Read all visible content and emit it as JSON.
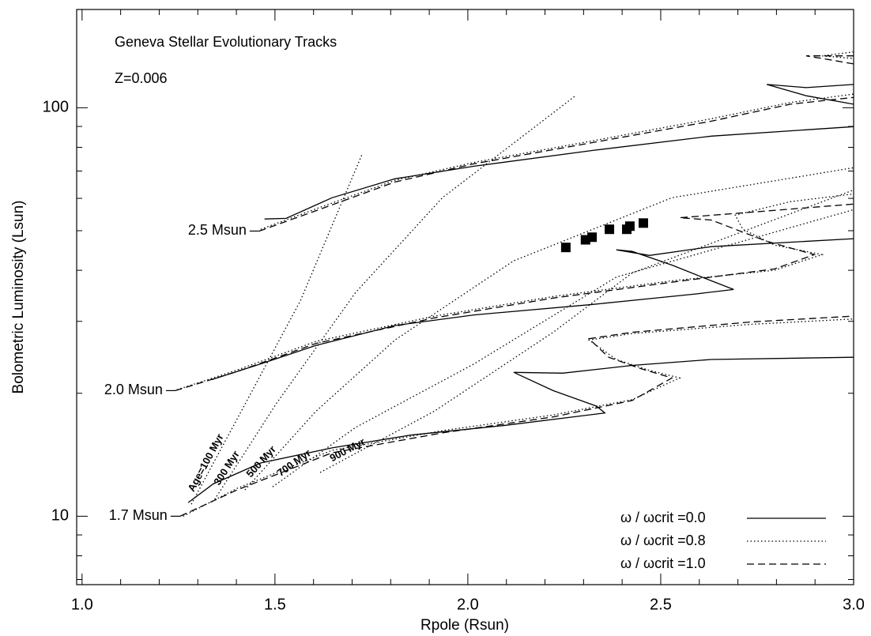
{
  "chart_data": {
    "type": "line",
    "annotations": [
      "Geneva Stellar Evolutionary Tracks",
      "Z=0.006"
    ],
    "x_label": "Rpole (Rsun)",
    "y_label": "Bolometric Luminosity (Lsun)",
    "xlim": [
      0.986,
      3.0
    ],
    "ylim": [
      6.8,
      174
    ],
    "log_y": true,
    "xticks": [
      {
        "value": 1.0,
        "label": "1.0"
      },
      {
        "value": 1.5,
        "label": "1.5"
      },
      {
        "value": 2.0,
        "label": "2.0"
      },
      {
        "value": 2.5,
        "label": "2.5"
      },
      {
        "value": 3.0,
        "label": "3.0"
      }
    ],
    "xminorticks": [
      1.1,
      1.2,
      1.3,
      1.4,
      1.6,
      1.7,
      1.8,
      1.9,
      2.1,
      2.2,
      2.3,
      2.4,
      2.6,
      2.7,
      2.8,
      2.9
    ],
    "yticks": [
      10,
      100
    ],
    "yminorticks": [
      7,
      8,
      9,
      20,
      30,
      40,
      50,
      60,
      70,
      80,
      90
    ],
    "legend": "bottom right",
    "color": "#000000",
    "mass_labels": [
      "1.7 Msun",
      "2.0 Msun",
      "2.5 Msun"
    ],
    "series": [
      {
        "name": "ω / ωcrit =0.0",
        "dash": "solid",
        "tracks": [
          {
            "x": [
              1.275,
              1.34,
              1.463,
              1.648,
              1.852,
              2.098,
              2.355,
              2.334,
              2.221,
              2.119,
              2.246,
              2.426,
              2.631,
              3.0
            ],
            "y": [
              10.8,
              12.0,
              13.5,
              14.7,
              15.8,
              16.7,
              17.9,
              18.6,
              20.3,
              22.5,
              22.4,
              23.4,
              24.2,
              24.5
            ]
          },
          {
            "x": [
              1.336,
              1.463,
              1.607,
              1.811,
              2.016,
              2.324,
              2.59,
              2.689,
              2.631,
              2.529,
              2.426,
              2.385,
              2.471,
              2.631,
              3.0
            ],
            "y": [
              21.6,
              23.6,
              26.2,
              29.3,
              31.1,
              33.0,
              35.0,
              35.9,
              37.7,
              41.2,
              44.5,
              44.9,
              43.5,
              45.7,
              47.8
            ]
          },
          {
            "x": [
              1.473,
              1.529,
              1.648,
              1.811,
              2.016,
              2.324,
              2.631,
              3.0,
              null,
              3.0,
              2.877,
              2.775,
              2.877,
              3.0
            ],
            "y": [
              53.4,
              53.6,
              60.2,
              67.0,
              71.9,
              78.6,
              85.2,
              89.9,
              null,
              102,
              107,
              114,
              112,
              114
            ]
          }
        ]
      },
      {
        "name": "ω / ωcrit =0.8",
        "dash": "dotted",
        "tracks": [
          {
            "x": [
              1.262,
              1.402,
              1.648,
              1.934,
              2.221,
              2.426,
              2.549,
              2.467,
              2.385,
              2.314,
              2.426,
              2.734,
              3.0
            ],
            "y": [
              10.0,
              11.7,
              14.5,
              16.2,
              17.7,
              19.3,
              21.8,
              22.8,
              24.2,
              27.0,
              28.0,
              29.5,
              30.4
            ]
          },
          {
            "x": [
              1.246,
              1.402,
              1.607,
              1.914,
              2.221,
              2.529,
              2.795,
              2.918,
              2.795,
              2.713,
              2.693,
              2.836,
              3.0
            ],
            "y": [
              20.4,
              22.8,
              26.8,
              30.9,
              34.5,
              37.7,
              40.0,
              43.7,
              46.1,
              50.4,
              54.6,
              58.9,
              61.5
            ]
          },
          {
            "x": [
              1.463,
              1.607,
              1.811,
              2.016,
              2.324,
              2.631,
              2.836,
              3.0,
              null,
              3.0,
              2.918,
              3.0
            ],
            "y": [
              50.4,
              56.6,
              66.4,
              73.5,
              83.0,
              94.0,
              103,
              108,
              null,
              137,
              134,
              132
            ]
          }
        ]
      },
      {
        "name": "ω / ωcrit =1.0",
        "dash": "dashed",
        "tracks": [
          {
            "x": [
              1.254,
              1.402,
              1.648,
              1.934,
              2.221,
              2.426,
              2.529,
              2.447,
              2.365,
              2.314,
              2.426,
              2.734,
              3.0
            ],
            "y": [
              10.0,
              11.6,
              14.3,
              16.0,
              17.5,
              19.2,
              21.8,
              23.0,
              24.5,
              27.2,
              28.2,
              29.9,
              30.9
            ]
          },
          {
            "x": [
              1.242,
              1.402,
              1.607,
              1.914,
              2.221,
              2.529,
              2.795,
              2.898,
              2.775,
              2.631,
              2.549,
              2.734,
              3.0
            ],
            "y": [
              20.3,
              22.6,
              26.5,
              30.6,
              34.2,
              37.4,
              40.3,
              43.7,
              47.1,
              53.1,
              53.8,
              55.5,
              58.1
            ]
          },
          {
            "x": [
              1.459,
              1.607,
              1.811,
              2.016,
              2.324,
              2.631,
              2.836,
              3.0,
              null,
              3.0,
              2.939,
              2.877,
              3.0
            ],
            "y": [
              49.9,
              56.0,
              65.8,
              72.9,
              82.2,
              92.7,
              102,
              106,
              null,
              128,
              131,
              134,
              134
            ]
          }
        ]
      }
    ],
    "isochrones": [
      {
        "label": "Age=100 Myr",
        "x": [
          1.283,
          1.402,
          1.566,
          1.725
        ],
        "y": [
          10.7,
          17.3,
          33.7,
          76.6
        ]
      },
      {
        "label": "300 Myr",
        "x": [
          1.344,
          1.504,
          1.709,
          1.934,
          2.279
        ],
        "y": [
          11.0,
          18.9,
          35.3,
          60.2,
          107
        ]
      },
      {
        "label": "500 Myr",
        "x": [
          1.422,
          1.607,
          1.811,
          2.119,
          2.529,
          3.0
        ],
        "y": [
          11.6,
          18.1,
          27.0,
          42.2,
          60.2,
          71.3
        ]
      },
      {
        "label": "700 Myr",
        "x": [
          1.494,
          1.709,
          2.016,
          2.385,
          3.0
        ],
        "y": [
          11.8,
          16.5,
          23.6,
          38.5,
          56.3
        ]
      },
      {
        "label": "900 Myr",
        "x": [
          1.617,
          1.914,
          2.221,
          2.426,
          3.0
        ],
        "y": [
          12.8,
          18.1,
          28.2,
          39.4,
          62.9
        ]
      }
    ],
    "points": {
      "x": [
        2.254,
        2.305,
        2.322,
        2.367,
        2.412,
        2.42,
        2.455
      ],
      "y": [
        45.5,
        47.5,
        48.2,
        50.4,
        50.4,
        51.3,
        52.2
      ]
    }
  }
}
